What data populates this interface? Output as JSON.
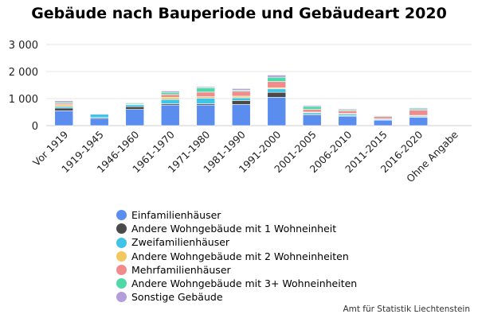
{
  "chart_data": {
    "type": "bar",
    "stacked": true,
    "title": "Gebäude nach Bauperiode und Gebäudeart 2020",
    "xlabel": "",
    "ylabel": "",
    "ylim": [
      0,
      3000
    ],
    "yticks": [
      0,
      1000,
      2000,
      3000
    ],
    "ytick_labels": [
      "0",
      "1 000",
      "2 000",
      "3 000"
    ],
    "grid": true,
    "legend_position": "bottom",
    "categories": [
      "Vor 1919",
      "1919-1945",
      "1946-1960",
      "1961-1970",
      "1971-1980",
      "1981-1990",
      "1991-2000",
      "2001-2005",
      "2006-2010",
      "2011-2015",
      "2016-2020",
      "Ohne Angabe"
    ],
    "series": [
      {
        "name": "Einfamilienhäuser",
        "color": "#5b8def",
        "values": [
          550,
          270,
          600,
          760,
          760,
          780,
          1050,
          390,
          350,
          200,
          310,
          0
        ]
      },
      {
        "name": "Andere Wohngebäude mit 1 Wohneinheit",
        "color": "#4a4a4a",
        "values": [
          100,
          30,
          100,
          50,
          50,
          150,
          180,
          30,
          20,
          10,
          20,
          0
        ]
      },
      {
        "name": "Zweifamilienhäuser",
        "color": "#3fc4e8",
        "values": [
          60,
          120,
          70,
          160,
          210,
          100,
          130,
          60,
          60,
          30,
          40,
          0
        ]
      },
      {
        "name": "Andere Wohngebäude mit 2 Wohneinheiten",
        "color": "#f3c75f",
        "values": [
          60,
          10,
          20,
          80,
          50,
          60,
          40,
          20,
          20,
          10,
          10,
          0
        ]
      },
      {
        "name": "Mehrfamilienhäuser",
        "color": "#f28b8b",
        "values": [
          50,
          10,
          10,
          100,
          170,
          180,
          230,
          100,
          100,
          80,
          190,
          0
        ]
      },
      {
        "name": "Andere Wohngebäude mit 3+ Wohneinheiten",
        "color": "#4fd8a8",
        "values": [
          40,
          20,
          40,
          80,
          160,
          40,
          160,
          110,
          40,
          30,
          50,
          0
        ]
      },
      {
        "name": "Sonstige Gebäude",
        "color": "#b39ddb",
        "values": [
          60,
          20,
          20,
          50,
          40,
          60,
          80,
          40,
          30,
          20,
          40,
          0
        ]
      }
    ]
  },
  "credit": "Amt für Statistik Liechtenstein"
}
